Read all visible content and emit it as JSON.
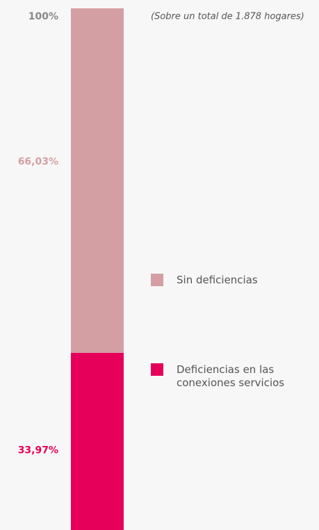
{
  "chart_data": {
    "type": "stacked_bar",
    "subtitle": "(Sobre un total de 1.878 hogares)",
    "categories": [
      null
    ],
    "series": [
      {
        "name": "Deficiencias en las conexiones servicios",
        "color": "#e6005a",
        "values": [
          33.97
        ],
        "value_labels": [
          "33,97%"
        ]
      },
      {
        "name": "Sin deficiencias",
        "color": "#d49fa2",
        "values": [
          66.03
        ],
        "value_labels": [
          "66,03%"
        ]
      }
    ],
    "ylim": [
      0,
      100
    ],
    "yticks": [
      {
        "value": 100,
        "label": "100%"
      }
    ]
  }
}
